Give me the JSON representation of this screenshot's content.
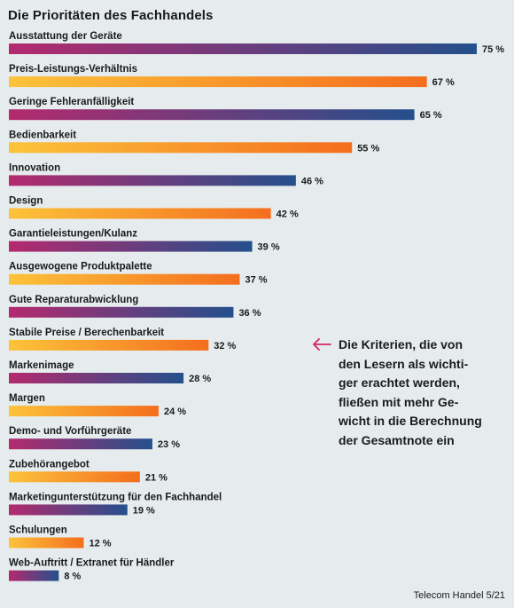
{
  "chart_data": {
    "type": "bar",
    "orientation": "horizontal",
    "title": "Die Prioritäten des Fachhandels",
    "categories": [
      "Ausstattung der Geräte",
      "Preis-Leistungs-Verhältnis",
      "Geringe Fehleranfälligkeit",
      "Bedienbarkeit",
      "Innovation",
      "Design",
      "Garantieleistungen/Kulanz",
      "Ausgewogene Produktpalette",
      "Gute Reparaturabwicklung",
      "Stabile Preise / Berechenbarkeit",
      "Markenimage",
      "Margen",
      "Demo- und Vorführgeräte",
      "Zubehörangebot",
      "Marketingunterstützung für den Fachhandel",
      "Schulungen",
      "Web-Auftritt / Extranet für Händler"
    ],
    "values": [
      75,
      67,
      65,
      55,
      46,
      42,
      39,
      37,
      36,
      32,
      28,
      24,
      23,
      21,
      19,
      12,
      8
    ],
    "value_labels": [
      "75 %",
      "67 %",
      "65 %",
      "55 %",
      "46 %",
      "42 %",
      "39 %",
      "37 %",
      "36 %",
      "32 %",
      "28 %",
      "24 %",
      "23 %",
      "21 %",
      "19 %",
      "12 %",
      "8 %"
    ],
    "unit": "%",
    "xlim": [
      0,
      100
    ],
    "grid": false,
    "bar_styles": [
      "blue",
      "orange",
      "blue",
      "orange",
      "blue",
      "orange",
      "blue",
      "orange",
      "blue",
      "orange",
      "blue",
      "orange",
      "blue",
      "orange",
      "blue",
      "orange",
      "blue"
    ],
    "colors": {
      "blue_gradient": [
        "#b42a6e",
        "#24508c"
      ],
      "orange_gradient": [
        "#fcc33a",
        "#f46e1e"
      ]
    }
  },
  "annotation": {
    "text": "Die Kriterien, die von\nden Lesern als wichti-\nger erachtet werden,\nfließen mit mehr Ge-\nwicht in die Berechnung\nder Gesamtnote ein",
    "arrow_color": "#d4265f",
    "arrow_icon": "left-arrow-icon"
  },
  "source": "Telecom Handel 5/21"
}
